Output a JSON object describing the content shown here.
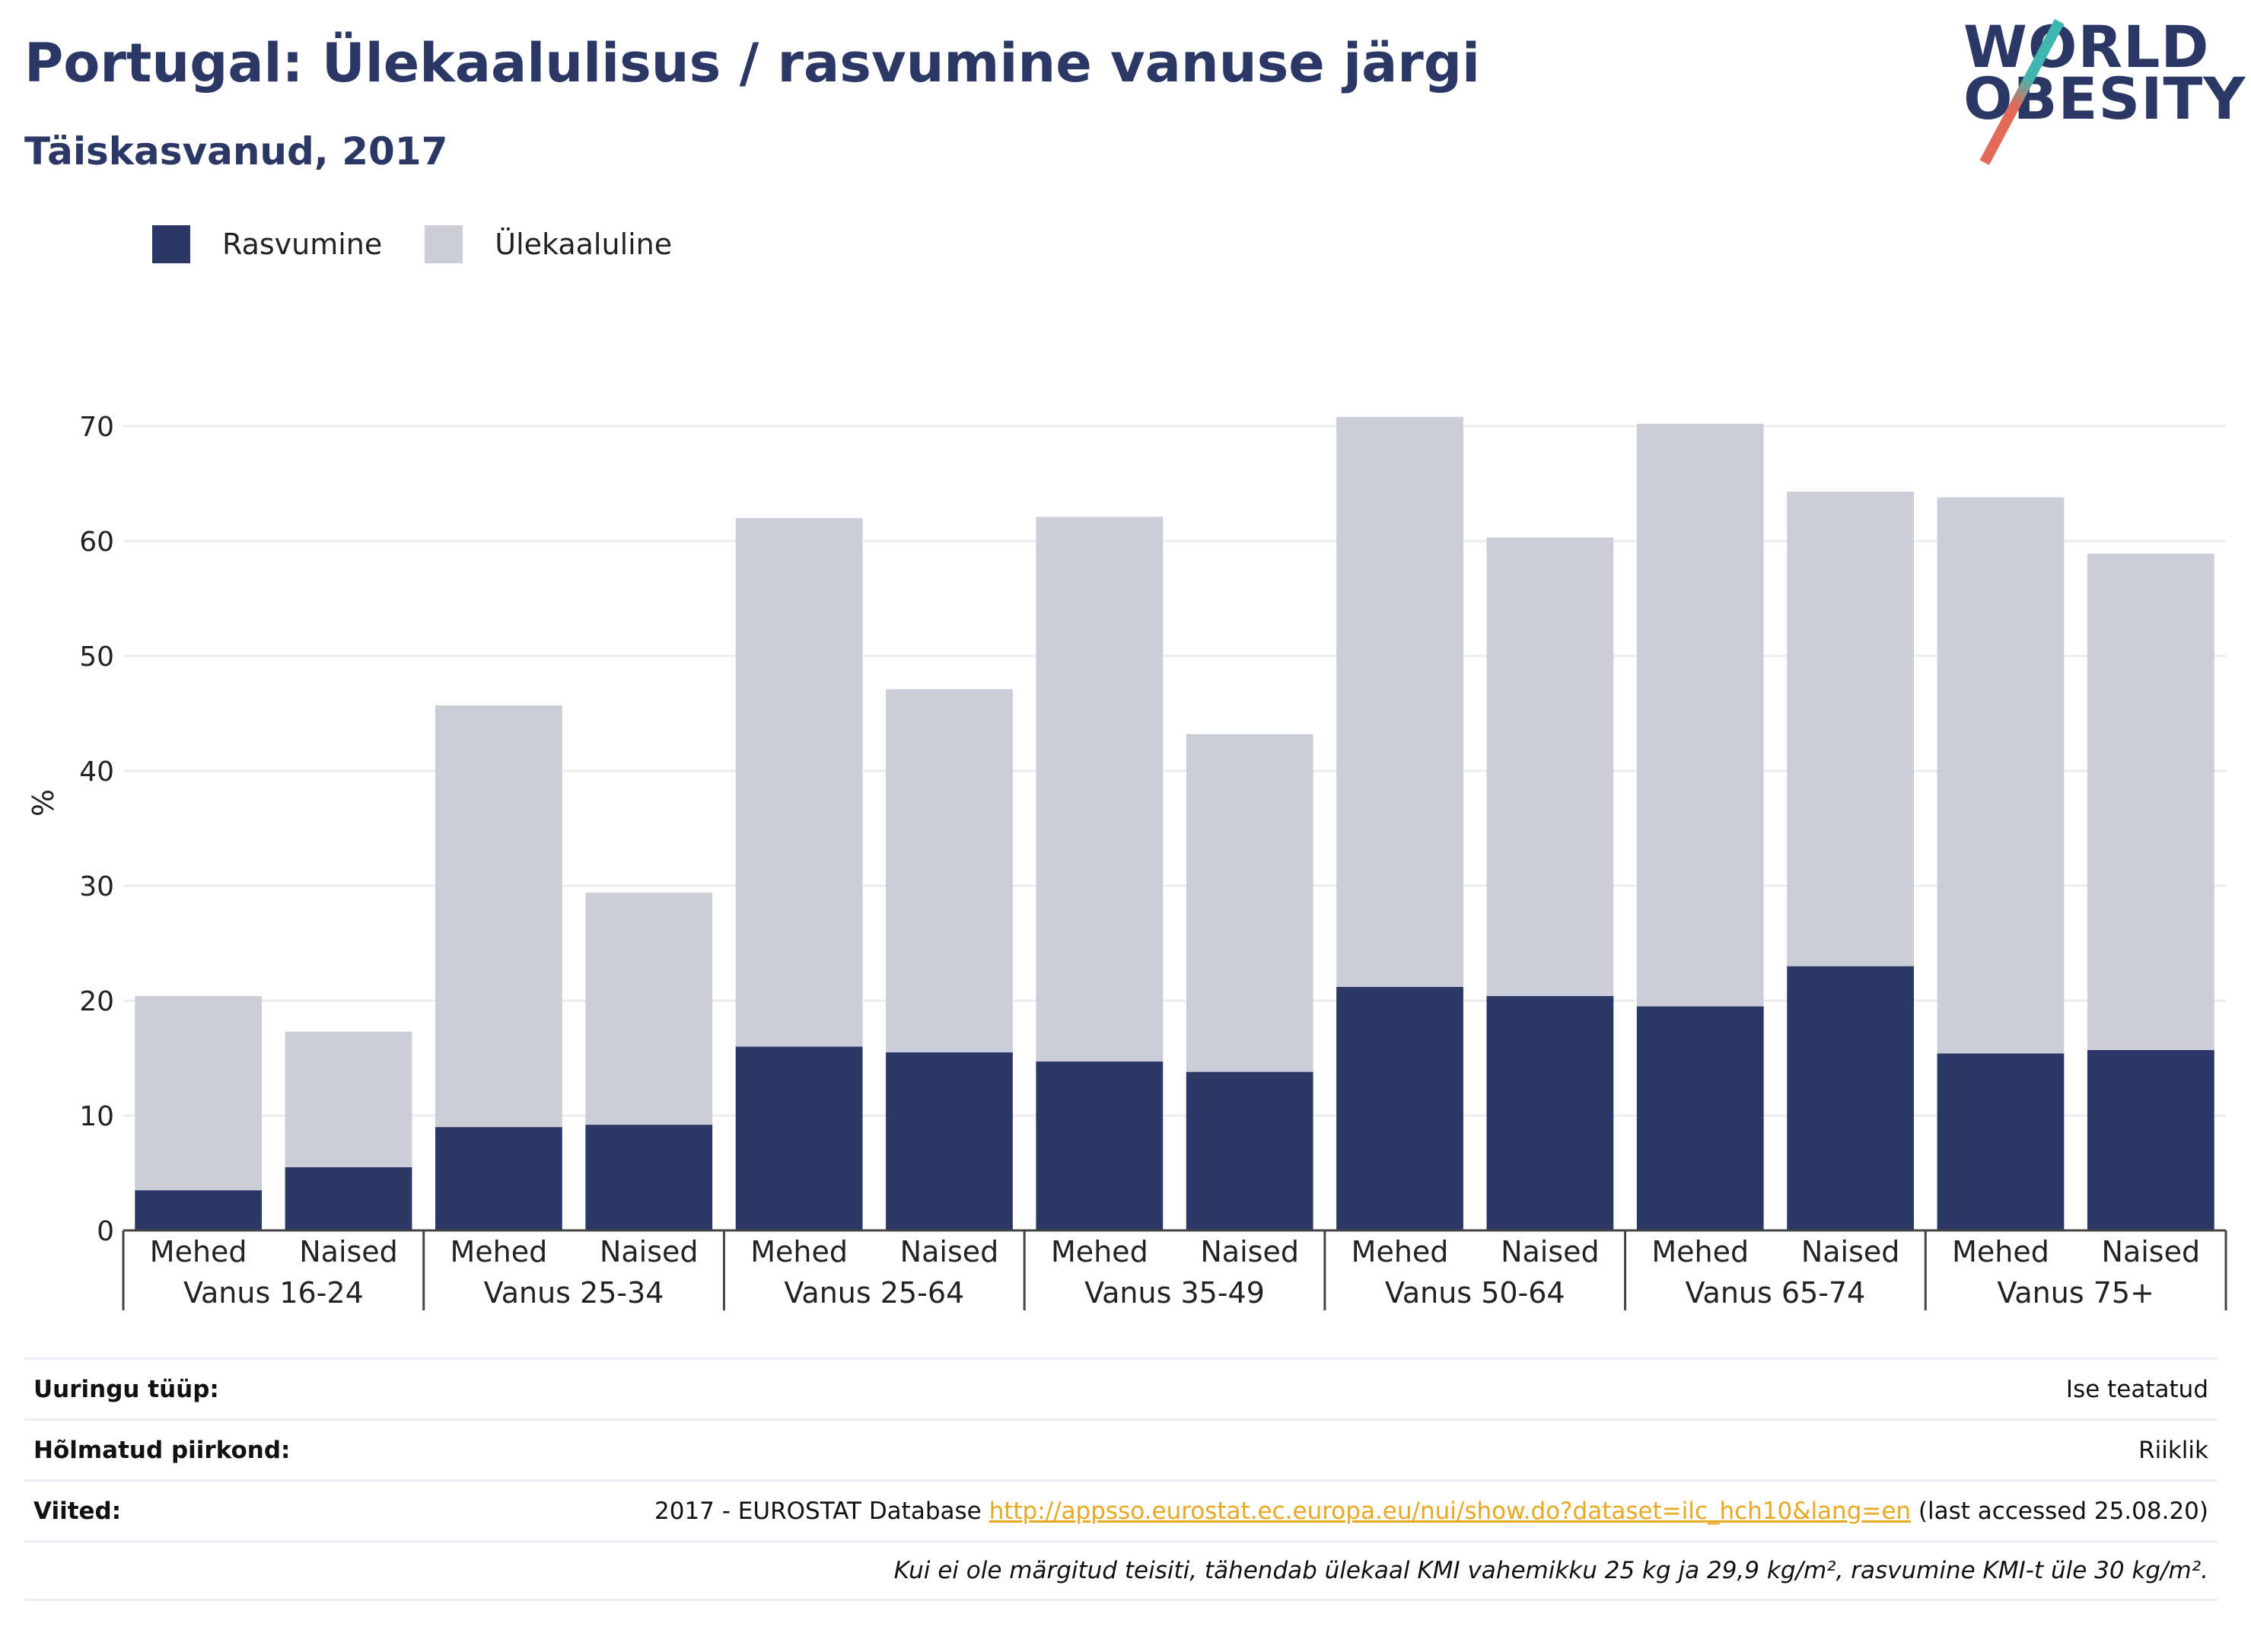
{
  "header": {
    "title": "Portugal: Ülekaalulisus / rasvumine vanuse järgi",
    "subtitle": "Täiskasvanud, 2017",
    "logo_line1": "WORLD",
    "logo_line2": "OBESITY"
  },
  "legend": {
    "items": [
      {
        "label": "Rasvumine",
        "color": "#2b3765"
      },
      {
        "label": "Ülekaaluline",
        "color": "#cbcdd9"
      }
    ]
  },
  "chart_data": {
    "type": "bar",
    "stacked": true,
    "ylabel": "%",
    "ylim": [
      0,
      72
    ],
    "yticks": [
      0,
      10,
      20,
      30,
      40,
      50,
      60,
      70
    ],
    "groups": [
      "Vanus 16-24",
      "Vanus 25-34",
      "Vanus 25-64",
      "Vanus 35-49",
      "Vanus 50-64",
      "Vanus 65-74",
      "Vanus 75+"
    ],
    "categories": [
      "Mehed",
      "Naised",
      "Mehed",
      "Naised",
      "Mehed",
      "Naised",
      "Mehed",
      "Naised",
      "Mehed",
      "Naised",
      "Mehed",
      "Naised",
      "Mehed",
      "Naised"
    ],
    "series": [
      {
        "name": "Rasvumine",
        "color": "#2b3765",
        "values": [
          3.5,
          5.5,
          9.0,
          9.2,
          16.0,
          15.5,
          14.7,
          13.8,
          21.2,
          20.4,
          19.5,
          23.0,
          15.4,
          15.7
        ]
      },
      {
        "name": "Ülekaaluline",
        "color": "#cbcdd9",
        "values": [
          16.9,
          11.8,
          36.7,
          20.2,
          46.0,
          31.6,
          47.4,
          29.4,
          49.6,
          39.9,
          50.7,
          41.3,
          48.4,
          43.2
        ]
      }
    ],
    "grid": true
  },
  "info": {
    "survey_label": "Uuringu tüüp:",
    "survey_value": "Ise teatatud",
    "region_label": "Hõlmatud piirkond:",
    "region_value": "Riiklik",
    "refs_label": "Viited:",
    "refs_prefix": "2017 - EUROSTAT Database ",
    "refs_link": "http://appsso.eurostat.ec.europa.eu/nui/show.do?dataset=ilc_hch10&lang=en",
    "refs_suffix": " (last accessed 25.08.20)",
    "note": "Kui ei ole märgitud teisiti, tähendab ülekaal KMI vahemikku 25 kg ja 29,9 kg/m², rasvumine KMI-t üle 30 kg/m²."
  }
}
